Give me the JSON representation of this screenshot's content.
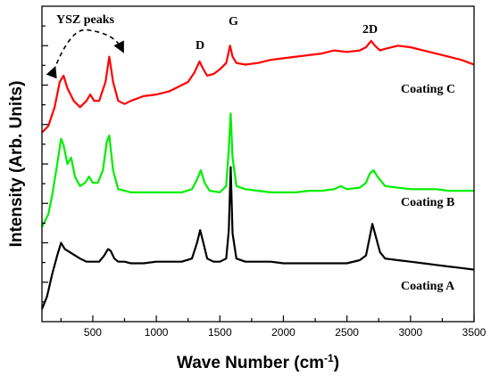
{
  "chart_data": {
    "type": "line",
    "xlabel": "Wave Number (cm",
    "xlabel_sup": "-1",
    "xlabel_end": ")",
    "ylabel": "Intensity (Arb. Units)",
    "xlim": [
      100,
      3500
    ],
    "ylim": [
      0,
      1
    ],
    "x_ticks": [
      500,
      1000,
      1500,
      2000,
      2500,
      3000,
      3500
    ],
    "y_tick_labels_shown": false,
    "grid": false,
    "legend": "none",
    "annotations": {
      "ysz": "YSZ peaks",
      "d": "D",
      "g": "G",
      "twod": "2D"
    },
    "series": [
      {
        "name": "Coating C",
        "color": "#ff0000",
        "x": [
          100,
          150,
          200,
          240,
          270,
          300,
          350,
          400,
          450,
          480,
          510,
          550,
          600,
          630,
          660,
          700,
          750,
          800,
          900,
          1000,
          1100,
          1200,
          1250,
          1300,
          1340,
          1370,
          1400,
          1450,
          1500,
          1550,
          1580,
          1600,
          1630,
          1700,
          1800,
          1900,
          2000,
          2100,
          2200,
          2300,
          2400,
          2500,
          2600,
          2650,
          2690,
          2720,
          2760,
          2800,
          2900,
          3000,
          3100,
          3200,
          3300,
          3400,
          3500
        ],
        "y": [
          0.6,
          0.62,
          0.68,
          0.76,
          0.78,
          0.74,
          0.7,
          0.68,
          0.7,
          0.72,
          0.7,
          0.7,
          0.76,
          0.84,
          0.76,
          0.7,
          0.69,
          0.7,
          0.715,
          0.72,
          0.73,
          0.75,
          0.76,
          0.79,
          0.825,
          0.8,
          0.78,
          0.785,
          0.8,
          0.82,
          0.875,
          0.84,
          0.82,
          0.815,
          0.82,
          0.83,
          0.835,
          0.84,
          0.845,
          0.85,
          0.86,
          0.855,
          0.86,
          0.87,
          0.89,
          0.875,
          0.86,
          0.865,
          0.875,
          0.87,
          0.86,
          0.85,
          0.84,
          0.83,
          0.815
        ]
      },
      {
        "name": "Coating B",
        "color": "#00ee00",
        "x": [
          100,
          150,
          180,
          220,
          250,
          270,
          300,
          330,
          360,
          400,
          440,
          470,
          500,
          540,
          580,
          610,
          630,
          660,
          700,
          750,
          800,
          900,
          1000,
          1100,
          1200,
          1280,
          1320,
          1350,
          1380,
          1420,
          1500,
          1550,
          1570,
          1585,
          1600,
          1630,
          1700,
          1800,
          1900,
          2000,
          2100,
          2200,
          2300,
          2400,
          2450,
          2500,
          2600,
          2650,
          2680,
          2710,
          2740,
          2800,
          2900,
          3000,
          3100,
          3200,
          3300,
          3400,
          3500
        ],
        "y": [
          0.3,
          0.34,
          0.4,
          0.5,
          0.58,
          0.56,
          0.5,
          0.52,
          0.46,
          0.43,
          0.44,
          0.46,
          0.44,
          0.44,
          0.48,
          0.57,
          0.59,
          0.48,
          0.42,
          0.415,
          0.41,
          0.41,
          0.41,
          0.41,
          0.41,
          0.42,
          0.45,
          0.48,
          0.44,
          0.415,
          0.41,
          0.43,
          0.55,
          0.66,
          0.52,
          0.43,
          0.42,
          0.415,
          0.41,
          0.41,
          0.41,
          0.415,
          0.415,
          0.42,
          0.43,
          0.42,
          0.425,
          0.44,
          0.47,
          0.48,
          0.46,
          0.43,
          0.425,
          0.42,
          0.42,
          0.42,
          0.415,
          0.415,
          0.415
        ]
      },
      {
        "name": "Coating A",
        "color": "#000000",
        "x": [
          100,
          140,
          180,
          220,
          250,
          280,
          320,
          360,
          400,
          450,
          500,
          550,
          590,
          620,
          640,
          670,
          700,
          750,
          800,
          900,
          1000,
          1100,
          1200,
          1280,
          1320,
          1345,
          1370,
          1400,
          1450,
          1500,
          1550,
          1570,
          1585,
          1600,
          1630,
          1700,
          1800,
          1900,
          2000,
          2100,
          2200,
          2300,
          2400,
          2500,
          2600,
          2650,
          2680,
          2700,
          2720,
          2760,
          2800,
          2900,
          3000,
          3100,
          3200,
          3300,
          3400,
          3500
        ],
        "y": [
          0.04,
          0.08,
          0.15,
          0.21,
          0.25,
          0.23,
          0.22,
          0.21,
          0.2,
          0.19,
          0.19,
          0.19,
          0.21,
          0.23,
          0.225,
          0.2,
          0.19,
          0.19,
          0.185,
          0.185,
          0.19,
          0.19,
          0.19,
          0.2,
          0.25,
          0.29,
          0.25,
          0.2,
          0.19,
          0.19,
          0.2,
          0.29,
          0.49,
          0.28,
          0.2,
          0.19,
          0.19,
          0.19,
          0.185,
          0.185,
          0.185,
          0.185,
          0.185,
          0.185,
          0.195,
          0.21,
          0.27,
          0.31,
          0.28,
          0.22,
          0.2,
          0.195,
          0.19,
          0.185,
          0.18,
          0.175,
          0.17,
          0.165
        ]
      }
    ]
  }
}
